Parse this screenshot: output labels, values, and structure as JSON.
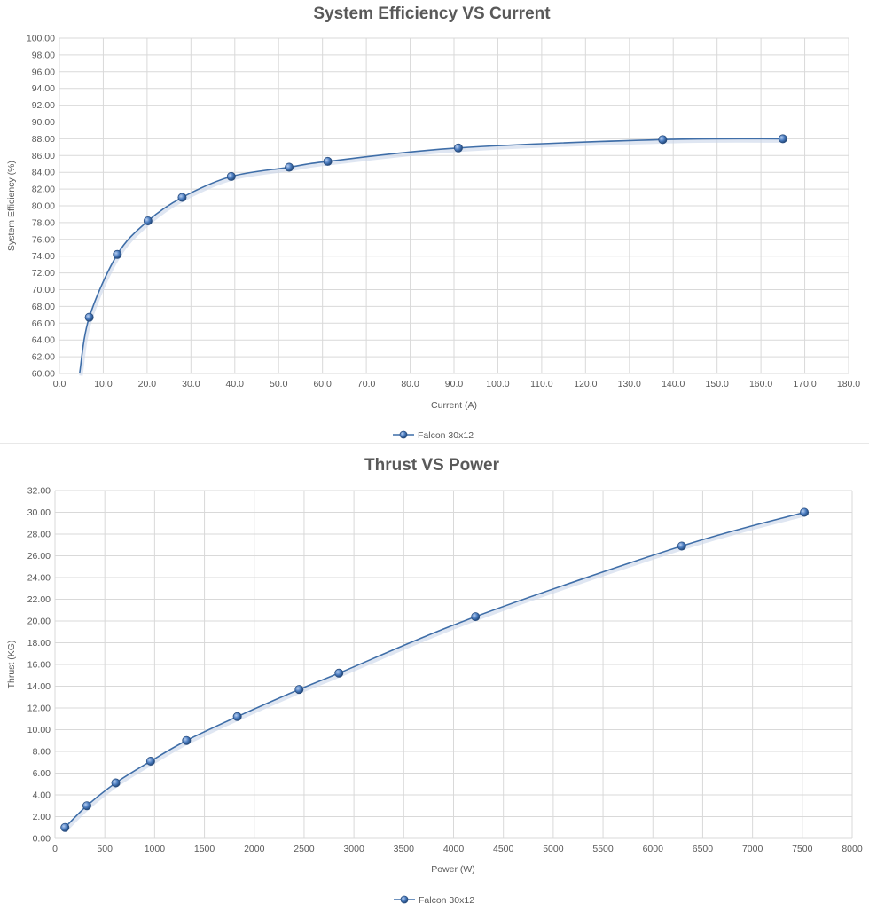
{
  "colors": {
    "series": "#3f6ea8",
    "grid": "#d9d9d9",
    "text": "#595959"
  },
  "chart_data": [
    {
      "type": "line",
      "title": "System Efficiency VS Current",
      "xlabel": "Current (A)",
      "ylabel": "System Efficiency (%)",
      "xlim": [
        0,
        180
      ],
      "ylim": [
        60,
        100
      ],
      "xticks": [
        "0.0",
        "10.0",
        "20.0",
        "30.0",
        "40.0",
        "50.0",
        "60.0",
        "70.0",
        "80.0",
        "90.0",
        "100.0",
        "110.0",
        "120.0",
        "130.0",
        "140.0",
        "150.0",
        "160.0",
        "170.0",
        "180.0"
      ],
      "yticks": [
        "60.00",
        "62.00",
        "64.00",
        "66.00",
        "68.00",
        "70.00",
        "72.00",
        "74.00",
        "76.00",
        "78.00",
        "80.00",
        "82.00",
        "84.00",
        "86.00",
        "88.00",
        "90.00",
        "92.00",
        "94.00",
        "96.00",
        "98.00",
        "100.00"
      ],
      "grid": true,
      "legend_position": "bottom",
      "series": [
        {
          "name": "Falcon 30x12",
          "x": [
            6.8,
            13.2,
            20.2,
            28.0,
            39.2,
            52.4,
            61.2,
            91.0,
            137.6,
            165.0
          ],
          "y": [
            66.7,
            74.2,
            78.2,
            81.0,
            83.5,
            84.6,
            85.3,
            86.9,
            87.9,
            88.0
          ]
        }
      ],
      "curve_start": {
        "x": 4.6,
        "y": 60.0
      }
    },
    {
      "type": "line",
      "title": "Thrust VS Power",
      "xlabel": "Power (W)",
      "ylabel": "Thrust (KG)",
      "xlim": [
        0,
        8000
      ],
      "ylim": [
        0,
        32
      ],
      "xticks": [
        "0",
        "500",
        "1000",
        "1500",
        "2000",
        "2500",
        "3000",
        "3500",
        "4000",
        "4500",
        "5000",
        "5500",
        "6000",
        "6500",
        "7000",
        "7500",
        "8000"
      ],
      "yticks": [
        "0.00",
        "2.00",
        "4.00",
        "6.00",
        "8.00",
        "10.00",
        "12.00",
        "14.00",
        "16.00",
        "18.00",
        "20.00",
        "22.00",
        "24.00",
        "26.00",
        "28.00",
        "30.00",
        "32.00"
      ],
      "grid": true,
      "legend_position": "bottom",
      "series": [
        {
          "name": "Falcon 30x12",
          "x": [
            100,
            320,
            610,
            960,
            1320,
            1830,
            2450,
            2850,
            4220,
            6290,
            7520
          ],
          "y": [
            1.0,
            3.0,
            5.1,
            7.1,
            9.0,
            11.2,
            13.7,
            15.2,
            20.4,
            26.9,
            30.0
          ]
        }
      ]
    }
  ]
}
